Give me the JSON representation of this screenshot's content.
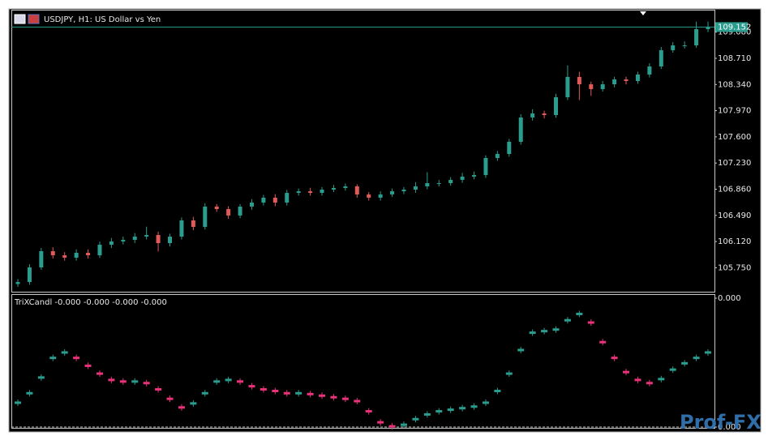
{
  "chart_data": [
    {
      "type": "candlestick",
      "title": "USDJPY, H1:  US Dollar vs Yen",
      "open": [
        105.52,
        105.548,
        105.755,
        105.984,
        105.926,
        105.892,
        105.961,
        105.926,
        106.075,
        106.121,
        106.144,
        106.19,
        106.213,
        106.098,
        106.19,
        106.419,
        106.327,
        106.614,
        106.579,
        106.488,
        106.614,
        106.671,
        106.74,
        106.671,
        106.808,
        106.831,
        106.808,
        106.854,
        106.877,
        106.9,
        106.786,
        106.74,
        106.786,
        106.831,
        106.854,
        106.9,
        106.946,
        106.946,
        106.992,
        107.038,
        107.06,
        107.301,
        107.358,
        107.53,
        107.874,
        107.931,
        107.908,
        108.16,
        108.447,
        108.343,
        108.275,
        108.343,
        108.412,
        108.389,
        108.481,
        108.595,
        108.825,
        108.893,
        108.893,
        109.122
      ],
      "high": [
        105.59,
        105.8,
        106.03,
        106.04,
        105.97,
        106.01,
        106.01,
        106.12,
        106.17,
        106.19,
        106.24,
        106.33,
        106.26,
        106.23,
        106.46,
        106.47,
        106.66,
        106.65,
        106.62,
        106.65,
        106.72,
        106.78,
        106.79,
        106.85,
        106.87,
        106.88,
        106.89,
        106.92,
        106.94,
        106.93,
        106.82,
        106.83,
        106.87,
        106.89,
        106.96,
        107.1,
        106.99,
        107.03,
        107.09,
        107.11,
        107.34,
        107.4,
        107.57,
        107.92,
        107.99,
        107.97,
        108.21,
        108.61,
        108.52,
        108.38,
        108.39,
        108.45,
        108.45,
        108.52,
        108.64,
        108.87,
        108.94,
        108.95,
        109.23,
        109.23
      ],
      "low": [
        105.48,
        105.51,
        105.72,
        105.88,
        105.85,
        105.85,
        105.88,
        105.89,
        106.03,
        106.08,
        106.1,
        106.15,
        105.98,
        106.05,
        106.15,
        106.28,
        106.29,
        106.54,
        106.44,
        106.45,
        106.57,
        106.63,
        106.62,
        106.63,
        106.77,
        106.77,
        106.77,
        106.82,
        106.84,
        106.74,
        106.7,
        106.7,
        106.75,
        106.79,
        106.81,
        106.86,
        106.9,
        106.91,
        106.95,
        107.0,
        107.02,
        107.26,
        107.32,
        107.49,
        107.83,
        107.86,
        107.87,
        108.12,
        108.12,
        108.18,
        108.24,
        108.3,
        108.34,
        108.35,
        108.44,
        108.56,
        108.79,
        108.85,
        108.86,
        109.08
      ],
      "close": [
        105.548,
        105.755,
        105.984,
        105.926,
        105.892,
        105.961,
        105.926,
        106.075,
        106.121,
        106.144,
        106.19,
        106.213,
        106.098,
        106.19,
        106.419,
        106.327,
        106.614,
        106.579,
        106.488,
        106.614,
        106.671,
        106.74,
        106.671,
        106.808,
        106.831,
        106.808,
        106.854,
        106.877,
        106.9,
        106.786,
        106.74,
        106.786,
        106.831,
        106.854,
        106.9,
        106.946,
        106.946,
        106.992,
        107.038,
        107.06,
        107.301,
        107.358,
        107.53,
        107.874,
        107.931,
        107.908,
        108.16,
        108.447,
        108.343,
        108.275,
        108.343,
        108.412,
        108.389,
        108.481,
        108.595,
        108.825,
        108.893,
        108.893,
        109.122,
        109.152
      ],
      "up_color": "#2a9d8f",
      "down_color": "#e05a5a",
      "ylim": [
        105.411,
        109.397
      ],
      "yticks": [
        {
          "value": 109.08,
          "label": "109.080"
        },
        {
          "value": 108.71,
          "label": "108.710"
        },
        {
          "value": 108.34,
          "label": "108.340"
        },
        {
          "value": 107.97,
          "label": "107.970"
        },
        {
          "value": 107.6,
          "label": "107.600"
        },
        {
          "value": 107.23,
          "label": "107.230"
        },
        {
          "value": 106.86,
          "label": "106.860"
        },
        {
          "value": 106.49,
          "label": "106.490"
        },
        {
          "value": 106.12,
          "label": "106.120"
        },
        {
          "value": 105.75,
          "label": "105.750"
        }
      ],
      "last_price": 109.152,
      "last_price_color": "#2a9d8f",
      "grid": false
    },
    {
      "type": "indicator",
      "title": "TriXCandl -0.000 -0.000 -0.000 -0.000",
      "values": [
        -0.00028,
        -0.000214,
        -0.000104,
        3.3e-05,
        7.1e-05,
        3.3e-05,
        -2.2e-05,
        -7.7e-05,
        -0.000121,
        -0.000132,
        -0.000132,
        -0.000143,
        -0.000187,
        -0.000253,
        -0.000313,
        -0.000285,
        -0.000214,
        -0.000132,
        -0.000121,
        -0.000132,
        -0.000165,
        -0.000187,
        -0.000198,
        -0.000214,
        -0.000214,
        -0.00022,
        -0.000231,
        -0.000242,
        -0.000253,
        -0.000269,
        -0.00034,
        -0.000417,
        -0.000445,
        -0.000434,
        -0.000395,
        -0.000362,
        -0.00034,
        -0.000329,
        -0.000318,
        -0.000307,
        -0.00028,
        -0.000198,
        -7.7e-05,
        8.8e-05,
        0.000209,
        0.00022,
        0.000231,
        0.000296,
        0.00034,
        0.00028,
        0.000143,
        3.3e-05,
        -6.6e-05,
        -0.000121,
        -0.000143,
        -0.000115,
        -4.9e-05,
        -5e-06,
        3.3e-05,
        7.1e-05
      ],
      "up_color": "#2a9d8f",
      "down_color": "#e8327a",
      "ylim": [
        -0.00045,
        0.00045
      ],
      "yticks": [
        {
          "value": 0.00045,
          "label": "0.000"
        },
        {
          "value": -0.00045,
          "label": "0.000"
        }
      ],
      "grid": false
    }
  ],
  "watermark": "Prof-FX"
}
